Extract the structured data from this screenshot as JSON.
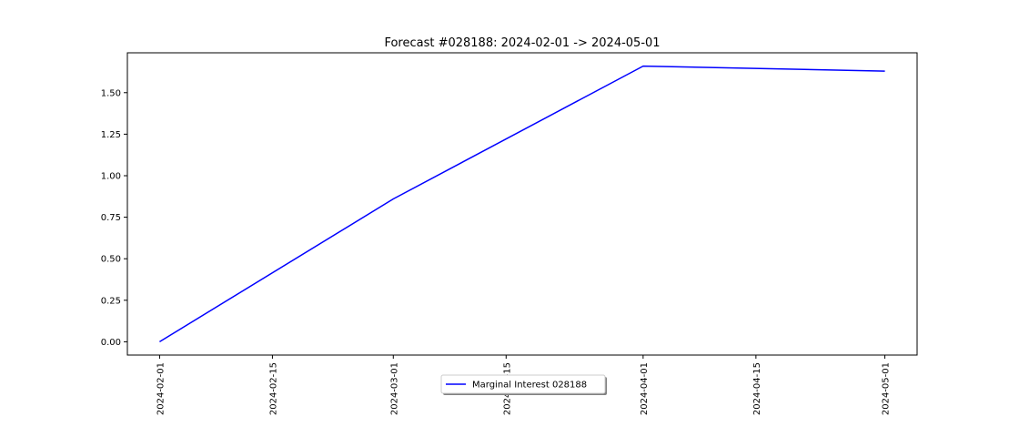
{
  "chart_data": {
    "type": "line",
    "title": "Forecast #028188: 2024-02-01 -> 2024-05-01",
    "xlabel": "",
    "ylabel": "",
    "x": [
      "2024-02-01",
      "2024-03-01",
      "2024-04-01",
      "2024-05-01"
    ],
    "series": [
      {
        "name": "Marginal Interest 028188",
        "values": [
          0.0,
          0.86,
          1.66,
          1.63
        ],
        "color": "#0000ff"
      }
    ],
    "xlim": [
      "2024-01-28",
      "2024-05-05"
    ],
    "ylim": [
      -0.08,
      1.74
    ],
    "x_ticks": [
      "2024-02-01",
      "2024-02-15",
      "2024-03-01",
      "2024-03-15",
      "2024-04-01",
      "2024-04-15",
      "2024-05-01"
    ],
    "y_ticks": [
      "0.00",
      "0.25",
      "0.50",
      "0.75",
      "1.00",
      "1.25",
      "1.50"
    ],
    "grid": false,
    "legend_position": "bottom-center"
  }
}
